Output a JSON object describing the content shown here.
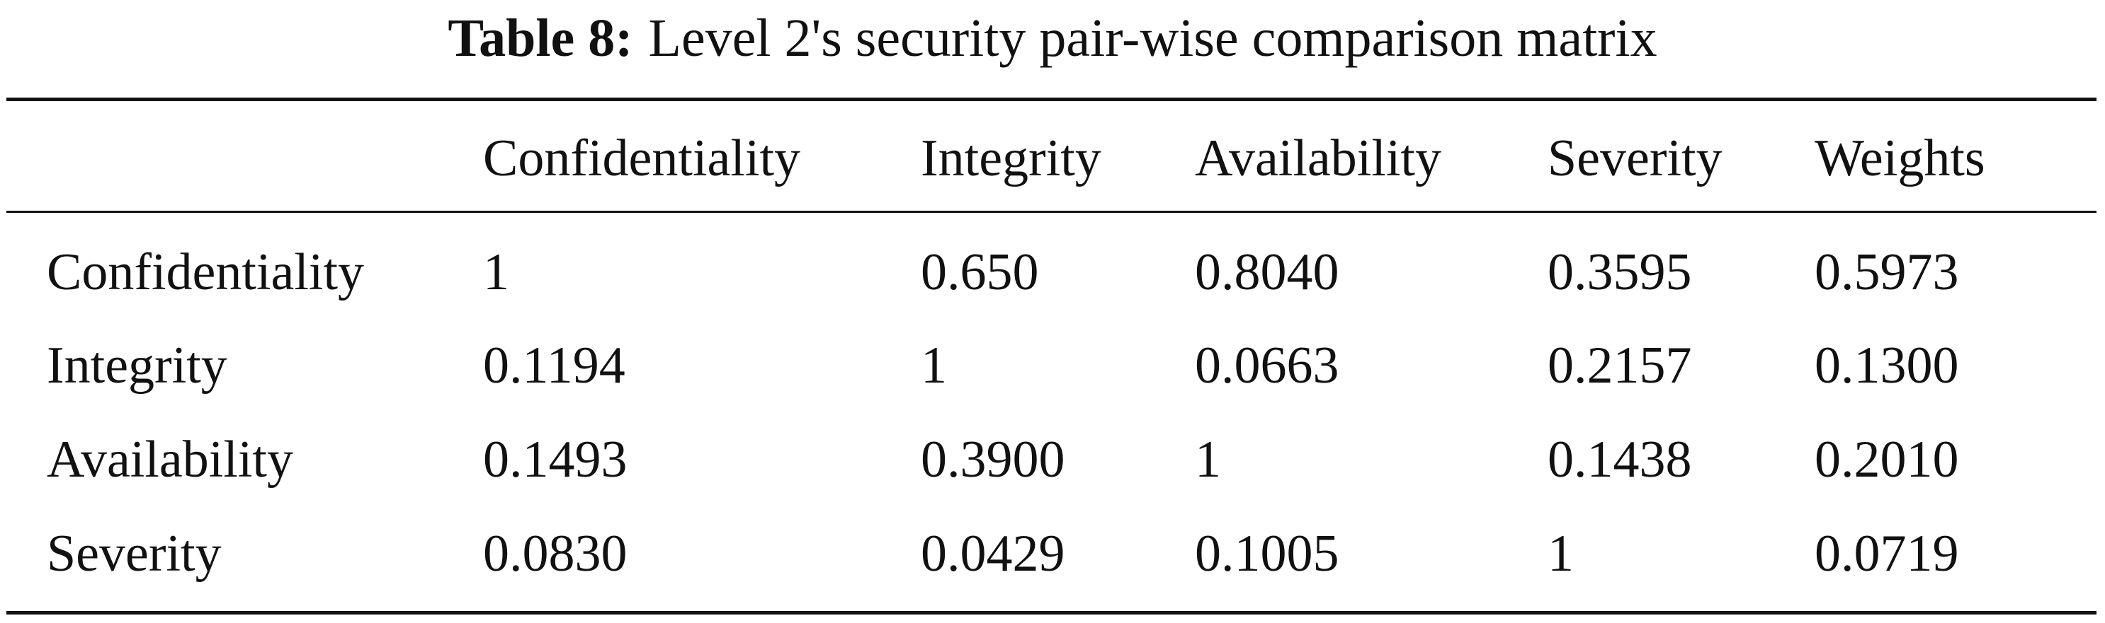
{
  "caption": {
    "label": "Table 8:",
    "text": "Level 2's security pair-wise comparison matrix"
  },
  "table": {
    "header": [
      "Confidentiality",
      "Integrity",
      "Availability",
      "Severity",
      "Weights"
    ],
    "rows": [
      [
        "Confidentiality",
        "1",
        "0.650",
        "0.8040",
        "0.3595",
        "0.5973"
      ],
      [
        "Integrity",
        "0.1194",
        "1",
        "0.0663",
        "0.2157",
        "0.1300"
      ],
      [
        "Availability",
        "0.1493",
        "0.3900",
        "1",
        "0.1438",
        "0.2010"
      ],
      [
        "Severity",
        "0.0830",
        "0.0429",
        "0.1005",
        "1",
        "0.0719"
      ]
    ]
  }
}
